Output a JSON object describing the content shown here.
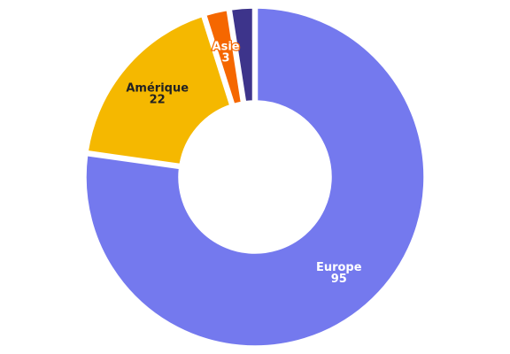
{
  "chart_data": {
    "type": "pie",
    "variant": "donut",
    "start": "top, clockwise",
    "legend": "none",
    "slices": [
      {
        "label": "Europe",
        "value": 95,
        "value_label": "95",
        "color": "#7479ee",
        "label_color": "#ffffff"
      },
      {
        "label": "Amérique",
        "value": 22,
        "value_label": "22",
        "color": "#f5b800",
        "label_color": "#222222"
      },
      {
        "label": "Asie",
        "value": 3,
        "value_label": "3",
        "color": "#f56700",
        "label_color": "#ffffff",
        "label_stroke": "#f56700"
      },
      {
        "label": "",
        "value": 3,
        "value_label": "",
        "color": "#3d348b"
      }
    ]
  }
}
